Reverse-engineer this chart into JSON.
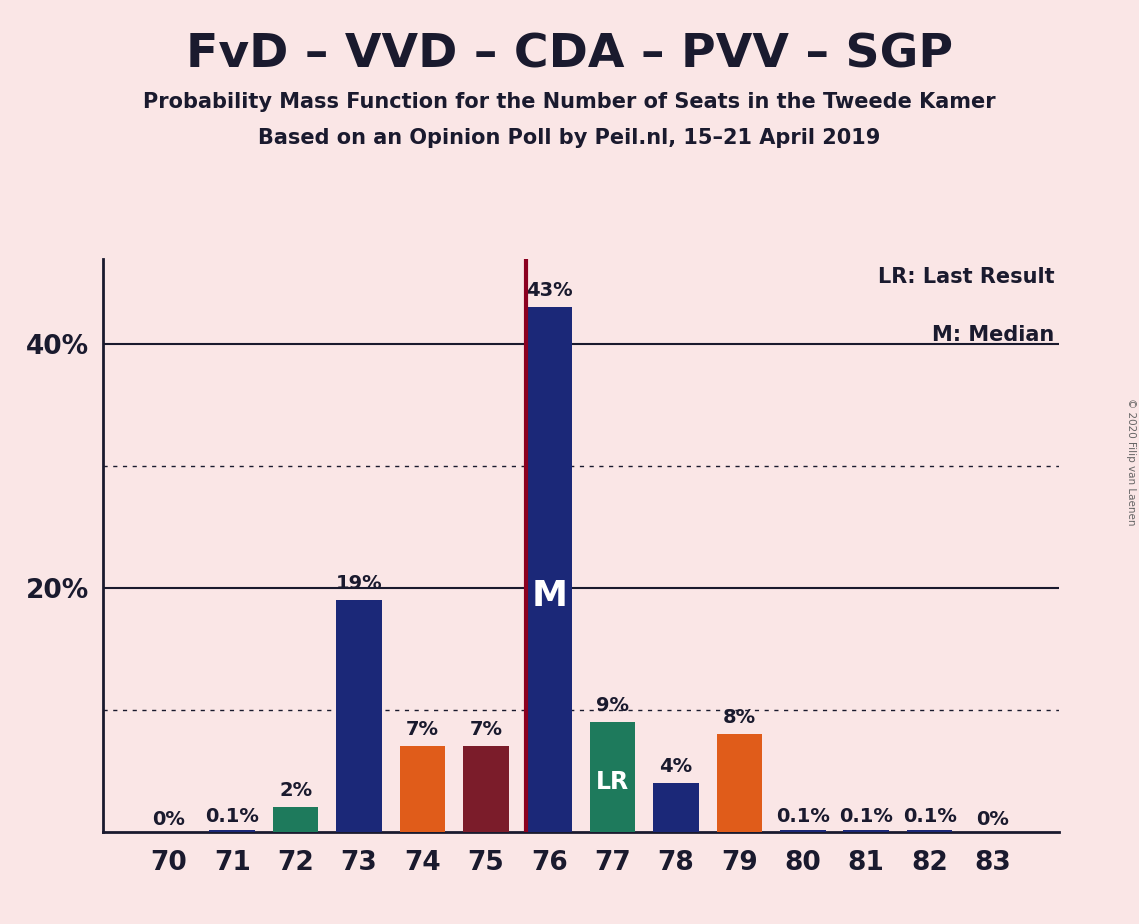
{
  "title": "FvD – VVD – CDA – PVV – SGP",
  "subtitle1": "Probability Mass Function for the Number of Seats in the Tweede Kamer",
  "subtitle2": "Based on an Opinion Poll by Peil.nl, 15–21 April 2019",
  "copyright": "© 2020 Filip van Laenen",
  "legend_lr": "LR: Last Result",
  "legend_m": "M: Median",
  "background_color": "#FAE6E6",
  "categories": [
    70,
    71,
    72,
    73,
    74,
    75,
    76,
    77,
    78,
    79,
    80,
    81,
    82,
    83
  ],
  "values": [
    0,
    0.1,
    2,
    19,
    7,
    7,
    43,
    9,
    4,
    8,
    0.1,
    0.1,
    0.1,
    0
  ],
  "bar_colors": [
    "#1B2878",
    "#1B2878",
    "#1E7A5C",
    "#1B2878",
    "#E05C1A",
    "#7B1C2A",
    "#1B2878",
    "#1E7A5C",
    "#1B2878",
    "#E05C1A",
    "#1B2878",
    "#1B2878",
    "#1B2878",
    "#1B2878"
  ],
  "label_texts": [
    "0%",
    "0.1%",
    "2%",
    "19%",
    "7%",
    "7%",
    "43%",
    "9%",
    "4%",
    "8%",
    "0.1%",
    "0.1%",
    "0.1%",
    "0%"
  ],
  "median_seat": 76,
  "lr_seat": 77,
  "ylim": [
    0,
    47
  ],
  "solid_yticks": [
    20,
    40
  ],
  "dotted_yticks": [
    10,
    30
  ],
  "title_fontsize": 34,
  "subtitle_fontsize": 15,
  "axis_label_fontsize": 19,
  "bar_label_fontsize": 14,
  "median_label": "M",
  "lr_label": "LR"
}
